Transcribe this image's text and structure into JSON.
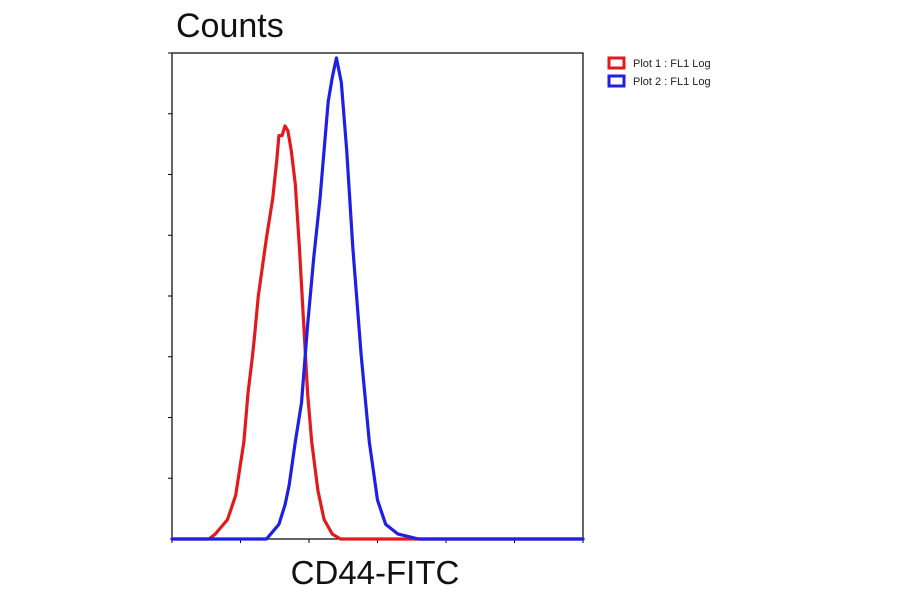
{
  "chart_data": {
    "type": "line",
    "title": "",
    "xlabel": "CD44-FITC",
    "ylabel": "Counts",
    "xscale": "log",
    "xlim": [
      0,
      1
    ],
    "ylim": [
      0,
      1
    ],
    "grid": false,
    "legend_position": "top-right-outside",
    "series": [
      {
        "name": "Plot 1 : FL1 Log",
        "color": "#e31a1c",
        "x": [
          0.0,
          0.09,
          0.105,
          0.135,
          0.155,
          0.175,
          0.185,
          0.195,
          0.2,
          0.21,
          0.23,
          0.245,
          0.255,
          0.26,
          0.268,
          0.275,
          0.282,
          0.29,
          0.3,
          0.31,
          0.32,
          0.33,
          0.34,
          0.355,
          0.37,
          0.39,
          0.41,
          0.45,
          1.0
        ],
        "values": [
          0.0,
          0.0,
          0.01,
          0.04,
          0.09,
          0.2,
          0.3,
          0.37,
          0.41,
          0.5,
          0.62,
          0.7,
          0.78,
          0.83,
          0.83,
          0.85,
          0.84,
          0.8,
          0.73,
          0.6,
          0.45,
          0.3,
          0.2,
          0.1,
          0.04,
          0.01,
          0.0,
          0.0,
          0.0
        ]
      },
      {
        "name": "Plot 2 : FL1 Log",
        "color": "#1f1fe6",
        "x": [
          0.0,
          0.23,
          0.245,
          0.26,
          0.275,
          0.285,
          0.3,
          0.315,
          0.33,
          0.345,
          0.36,
          0.372,
          0.38,
          0.39,
          0.4,
          0.412,
          0.425,
          0.44,
          0.46,
          0.48,
          0.5,
          0.52,
          0.55,
          0.6,
          1.0
        ],
        "values": [
          0.0,
          0.0,
          0.015,
          0.03,
          0.07,
          0.11,
          0.2,
          0.28,
          0.44,
          0.58,
          0.7,
          0.82,
          0.9,
          0.95,
          0.99,
          0.94,
          0.8,
          0.6,
          0.38,
          0.2,
          0.08,
          0.03,
          0.01,
          0.0,
          0.0
        ]
      }
    ]
  }
}
